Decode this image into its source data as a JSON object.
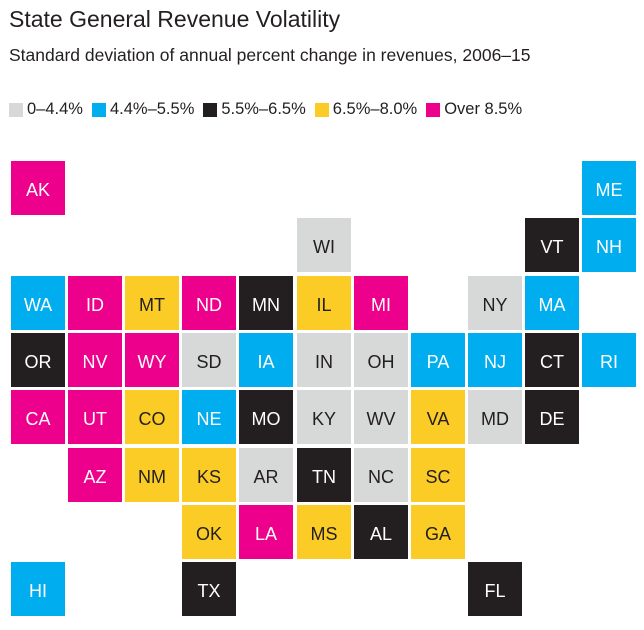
{
  "chart_data": {
    "type": "tile-map",
    "title": "State General Revenue Volatility",
    "subtitle": "Standard deviation of annual percent change in revenues, 2006–15",
    "legend": [
      {
        "key": "c0",
        "label": "0–4.4%",
        "color": "#d7d8d8",
        "text_color": "#231f20"
      },
      {
        "key": "c1",
        "label": "4.4%–5.5%",
        "color": "#00aeef",
        "text_color": "#ffffff"
      },
      {
        "key": "c2",
        "label": "5.5%–6.5%",
        "color": "#231f20",
        "text_color": "#ffffff"
      },
      {
        "key": "c3",
        "label": "6.5%–8.0%",
        "color": "#fccc26",
        "text_color": "#231f20"
      },
      {
        "key": "c4",
        "label": "Over 8.5%",
        "color": "#ec008c",
        "text_color": "#ffffff"
      }
    ],
    "legend_position": "top-left",
    "states": [
      {
        "abbr": "AK",
        "row": 0,
        "col": 0,
        "category": "c4"
      },
      {
        "abbr": "ME",
        "row": 0,
        "col": 10,
        "category": "c1"
      },
      {
        "abbr": "WI",
        "row": 1,
        "col": 5,
        "category": "c0"
      },
      {
        "abbr": "VT",
        "row": 1,
        "col": 9,
        "category": "c2"
      },
      {
        "abbr": "NH",
        "row": 1,
        "col": 10,
        "category": "c1"
      },
      {
        "abbr": "WA",
        "row": 2,
        "col": 0,
        "category": "c1"
      },
      {
        "abbr": "ID",
        "row": 2,
        "col": 1,
        "category": "c4"
      },
      {
        "abbr": "MT",
        "row": 2,
        "col": 2,
        "category": "c3"
      },
      {
        "abbr": "ND",
        "row": 2,
        "col": 3,
        "category": "c4"
      },
      {
        "abbr": "MN",
        "row": 2,
        "col": 4,
        "category": "c2"
      },
      {
        "abbr": "IL",
        "row": 2,
        "col": 5,
        "category": "c3"
      },
      {
        "abbr": "MI",
        "row": 2,
        "col": 6,
        "category": "c4"
      },
      {
        "abbr": "NY",
        "row": 2,
        "col": 8,
        "category": "c0"
      },
      {
        "abbr": "MA",
        "row": 2,
        "col": 9,
        "category": "c1"
      },
      {
        "abbr": "OR",
        "row": 3,
        "col": 0,
        "category": "c2"
      },
      {
        "abbr": "NV",
        "row": 3,
        "col": 1,
        "category": "c4"
      },
      {
        "abbr": "WY",
        "row": 3,
        "col": 2,
        "category": "c4"
      },
      {
        "abbr": "SD",
        "row": 3,
        "col": 3,
        "category": "c0"
      },
      {
        "abbr": "IA",
        "row": 3,
        "col": 4,
        "category": "c1"
      },
      {
        "abbr": "IN",
        "row": 3,
        "col": 5,
        "category": "c0"
      },
      {
        "abbr": "OH",
        "row": 3,
        "col": 6,
        "category": "c0"
      },
      {
        "abbr": "PA",
        "row": 3,
        "col": 7,
        "category": "c1"
      },
      {
        "abbr": "NJ",
        "row": 3,
        "col": 8,
        "category": "c1"
      },
      {
        "abbr": "CT",
        "row": 3,
        "col": 9,
        "category": "c2"
      },
      {
        "abbr": "RI",
        "row": 3,
        "col": 10,
        "category": "c1"
      },
      {
        "abbr": "CA",
        "row": 4,
        "col": 0,
        "category": "c4"
      },
      {
        "abbr": "UT",
        "row": 4,
        "col": 1,
        "category": "c4"
      },
      {
        "abbr": "CO",
        "row": 4,
        "col": 2,
        "category": "c3"
      },
      {
        "abbr": "NE",
        "row": 4,
        "col": 3,
        "category": "c1"
      },
      {
        "abbr": "MO",
        "row": 4,
        "col": 4,
        "category": "c2"
      },
      {
        "abbr": "KY",
        "row": 4,
        "col": 5,
        "category": "c0"
      },
      {
        "abbr": "WV",
        "row": 4,
        "col": 6,
        "category": "c0"
      },
      {
        "abbr": "VA",
        "row": 4,
        "col": 7,
        "category": "c3"
      },
      {
        "abbr": "MD",
        "row": 4,
        "col": 8,
        "category": "c0"
      },
      {
        "abbr": "DE",
        "row": 4,
        "col": 9,
        "category": "c2"
      },
      {
        "abbr": "AZ",
        "row": 5,
        "col": 1,
        "category": "c4"
      },
      {
        "abbr": "NM",
        "row": 5,
        "col": 2,
        "category": "c3"
      },
      {
        "abbr": "KS",
        "row": 5,
        "col": 3,
        "category": "c3"
      },
      {
        "abbr": "AR",
        "row": 5,
        "col": 4,
        "category": "c0"
      },
      {
        "abbr": "TN",
        "row": 5,
        "col": 5,
        "category": "c2"
      },
      {
        "abbr": "NC",
        "row": 5,
        "col": 6,
        "category": "c0"
      },
      {
        "abbr": "SC",
        "row": 5,
        "col": 7,
        "category": "c3"
      },
      {
        "abbr": "OK",
        "row": 6,
        "col": 3,
        "category": "c3"
      },
      {
        "abbr": "LA",
        "row": 6,
        "col": 4,
        "category": "c4"
      },
      {
        "abbr": "MS",
        "row": 6,
        "col": 5,
        "category": "c3"
      },
      {
        "abbr": "AL",
        "row": 6,
        "col": 6,
        "category": "c2"
      },
      {
        "abbr": "GA",
        "row": 6,
        "col": 7,
        "category": "c3"
      },
      {
        "abbr": "HI",
        "row": 7,
        "col": 0,
        "category": "c1"
      },
      {
        "abbr": "TX",
        "row": 7,
        "col": 3,
        "category": "c2"
      },
      {
        "abbr": "FL",
        "row": 7,
        "col": 8,
        "category": "c2"
      }
    ]
  }
}
